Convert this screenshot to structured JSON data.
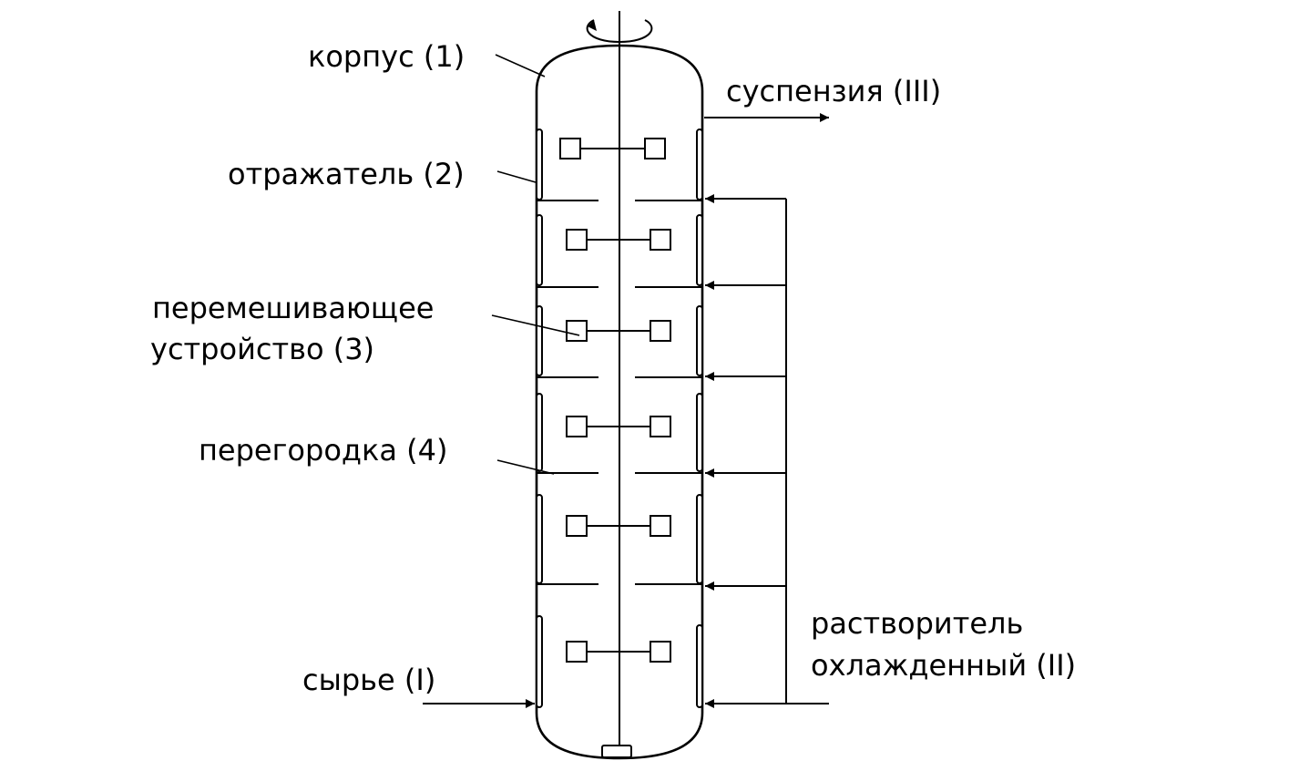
{
  "labels": {
    "body": "корпус (1)",
    "reflector": "отражатель (2)",
    "mixer_line1": "перемешивающее",
    "mixer_line2": "устройство (3)",
    "partition": "перегородка (4)",
    "feed": "сырье (I)",
    "solvent_line1": "растворитель",
    "solvent_line2": "охлажденный (II)",
    "suspension": "суспензия (III)"
  },
  "colors": {
    "stroke": "#000000",
    "background": "#ffffff"
  }
}
